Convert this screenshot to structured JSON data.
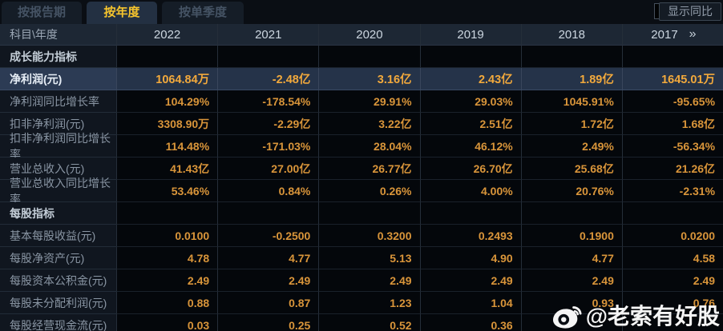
{
  "tabs": [
    {
      "label": "按报告期",
      "active": false
    },
    {
      "label": "按年度",
      "active": true
    },
    {
      "label": "按单季度",
      "active": false
    }
  ],
  "controls": {
    "show_yoy_label": "显示同比",
    "yoy_checked": false,
    "more_icon": "»"
  },
  "table": {
    "corner_label": "科目\\年度",
    "years": [
      "2022",
      "2021",
      "2020",
      "2019",
      "2018",
      "2017"
    ],
    "rows": [
      {
        "type": "section",
        "label": "成长能力指标",
        "values": [
          "",
          "",
          "",
          "",
          "",
          ""
        ]
      },
      {
        "type": "data",
        "highlight": true,
        "label": "净利润(元)",
        "values": [
          "1064.84万",
          "-2.48亿",
          "3.16亿",
          "2.43亿",
          "1.89亿",
          "1645.01万"
        ]
      },
      {
        "type": "data",
        "highlight": false,
        "label": "净利润同比增长率",
        "values": [
          "104.29%",
          "-178.54%",
          "29.91%",
          "29.03%",
          "1045.91%",
          "-95.65%"
        ]
      },
      {
        "type": "data",
        "highlight": false,
        "label": "扣非净利润(元)",
        "values": [
          "3308.90万",
          "-2.29亿",
          "3.22亿",
          "2.51亿",
          "1.72亿",
          "1.68亿"
        ]
      },
      {
        "type": "data",
        "highlight": false,
        "label": "扣非净利润同比增长率",
        "values": [
          "114.48%",
          "-171.03%",
          "28.04%",
          "46.12%",
          "2.49%",
          "-56.34%"
        ]
      },
      {
        "type": "data",
        "highlight": false,
        "label": "营业总收入(元)",
        "values": [
          "41.43亿",
          "27.00亿",
          "26.77亿",
          "26.70亿",
          "25.68亿",
          "21.26亿"
        ]
      },
      {
        "type": "data",
        "highlight": false,
        "label": "营业总收入同比增长率",
        "values": [
          "53.46%",
          "0.84%",
          "0.26%",
          "4.00%",
          "20.76%",
          "-2.31%"
        ]
      },
      {
        "type": "section",
        "label": "每股指标",
        "values": [
          "",
          "",
          "",
          "",
          "",
          ""
        ]
      },
      {
        "type": "data",
        "highlight": false,
        "label": "基本每股收益(元)",
        "values": [
          "0.0100",
          "-0.2500",
          "0.3200",
          "0.2493",
          "0.1900",
          "0.0200"
        ]
      },
      {
        "type": "data",
        "highlight": false,
        "label": "每股净资产(元)",
        "values": [
          "4.78",
          "4.77",
          "5.13",
          "4.90",
          "4.77",
          "4.58"
        ]
      },
      {
        "type": "data",
        "highlight": false,
        "label": "每股资本公积金(元)",
        "values": [
          "2.49",
          "2.49",
          "2.49",
          "2.49",
          "2.49",
          "2.49"
        ]
      },
      {
        "type": "data",
        "highlight": false,
        "label": "每股未分配利润(元)",
        "values": [
          "0.88",
          "0.87",
          "1.23",
          "1.04",
          "0.93",
          "0.76"
        ]
      },
      {
        "type": "data",
        "highlight": false,
        "label": "每股经营现金流(元)",
        "values": [
          "0.03",
          "0.25",
          "0.52",
          "0.36",
          "",
          ""
        ]
      }
    ]
  },
  "watermark": {
    "handle": "@老索有好股",
    "icon": "weibo"
  },
  "colors": {
    "accent_yellow": "#f7c52d",
    "value_orange": "#d9953a",
    "highlight_row_bg": "#253349",
    "header_bg": "#1d2734"
  }
}
